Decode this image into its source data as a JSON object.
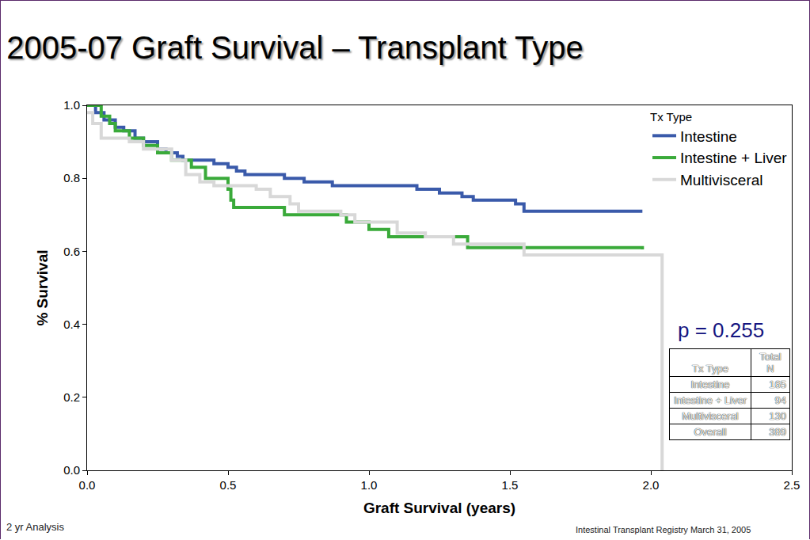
{
  "chart_data": {
    "type": "line",
    "line_style": "step",
    "title": "2005-07 Graft Survival – Transplant Type",
    "x_label": "Graft Survival (years)",
    "y_label": "% Survival",
    "legend_title": "Tx Type",
    "legend": "top-right",
    "grid": false,
    "xlim": [
      0,
      2.5
    ],
    "xticks": [
      {
        "value": 0,
        "label": "0.0"
      },
      0.5,
      {
        "value": 1,
        "label": "1.0"
      },
      1.5,
      {
        "value": 2,
        "label": "2.0"
      },
      2.5
    ],
    "ylim": [
      0,
      1
    ],
    "yticks": [
      {
        "value": 0,
        "label": "0.0"
      },
      0.2,
      0.4,
      0.6,
      0.8,
      {
        "value": 1,
        "label": "1.0"
      }
    ],
    "series": [
      {
        "name": "Intestine",
        "color": "#3a5aaa",
        "x": [
          0,
          0.03,
          0.06,
          0.1,
          0.13,
          0.17,
          0.2,
          0.25,
          0.28,
          0.32,
          0.34,
          0.45,
          0.5,
          0.53,
          0.56,
          0.7,
          0.77,
          0.87,
          1.17,
          1.25,
          1.33,
          1.37,
          1.52,
          1.55,
          1.97
        ],
        "values": [
          1.0,
          0.98,
          0.96,
          0.94,
          0.93,
          0.91,
          0.9,
          0.88,
          0.87,
          0.86,
          0.85,
          0.84,
          0.83,
          0.82,
          0.81,
          0.8,
          0.79,
          0.78,
          0.77,
          0.76,
          0.75,
          0.74,
          0.73,
          0.71,
          0.71
        ]
      },
      {
        "name": "Intestine + Liver",
        "color": "#3aaa3a",
        "x": [
          0,
          0.05,
          0.08,
          0.1,
          0.15,
          0.2,
          0.25,
          0.3,
          0.37,
          0.42,
          0.5,
          0.51,
          0.52,
          0.7,
          0.92,
          1.0,
          1.07,
          1.35,
          1.97
        ],
        "values": [
          1.0,
          0.97,
          0.95,
          0.93,
          0.91,
          0.89,
          0.87,
          0.85,
          0.83,
          0.8,
          0.77,
          0.74,
          0.72,
          0.7,
          0.68,
          0.66,
          0.64,
          0.61,
          0.605
        ]
      },
      {
        "name": "Multivisceral",
        "color": "#d8d8d8",
        "x": [
          0,
          0.02,
          0.05,
          0.15,
          0.2,
          0.3,
          0.35,
          0.4,
          0.45,
          0.6,
          0.65,
          0.72,
          0.75,
          0.9,
          0.95,
          1.1,
          1.2,
          1.3,
          1.55,
          2.04,
          2.04
        ],
        "values": [
          0.98,
          0.95,
          0.91,
          0.9,
          0.88,
          0.85,
          0.81,
          0.79,
          0.78,
          0.77,
          0.75,
          0.73,
          0.71,
          0.7,
          0.68,
          0.65,
          0.64,
          0.62,
          0.59,
          0.59,
          0
        ]
      }
    ],
    "annotations": [
      "p = 0.255"
    ],
    "table": {
      "header": [
        "Tx Type",
        "Total N"
      ],
      "rows": [
        [
          "Intestine",
          165
        ],
        [
          "Intestine + Liver",
          94
        ],
        [
          "Multivisceral",
          130
        ],
        [
          "Overall",
          389
        ]
      ]
    },
    "footer_left": "2 yr Analysis",
    "footer_right": "Intestinal Transplant Registry March 31, 2005"
  }
}
